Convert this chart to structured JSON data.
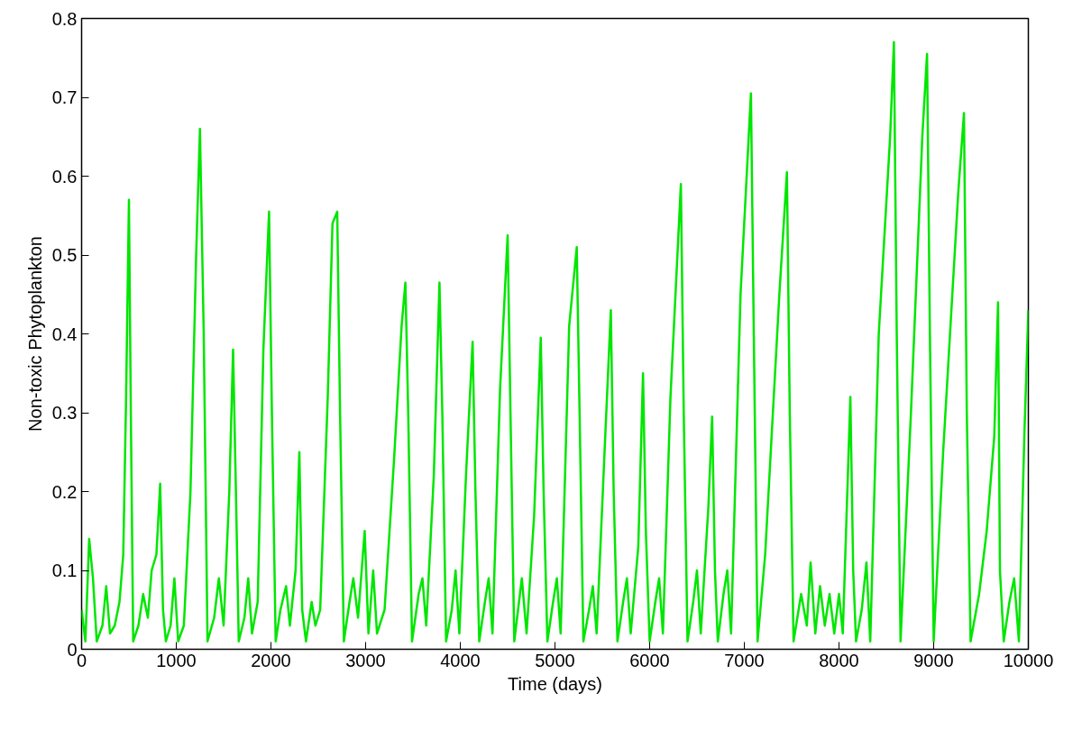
{
  "chart_data": {
    "type": "line",
    "xlabel": "Time (days)",
    "ylabel": "Non-toxic Phytoplankton",
    "xlim": [
      0,
      10000
    ],
    "ylim": [
      0,
      0.8
    ],
    "xticks": [
      0,
      1000,
      2000,
      3000,
      4000,
      5000,
      6000,
      7000,
      8000,
      9000,
      10000
    ],
    "yticks": [
      0,
      0.1,
      0.2,
      0.3,
      0.4,
      0.5,
      0.6,
      0.7,
      0.8
    ],
    "grid": false,
    "marker": "none",
    "line_style": "solid",
    "series": [
      {
        "color": "#00e600",
        "x": [
          0,
          40,
          80,
          120,
          160,
          220,
          260,
          300,
          350,
          400,
          440,
          470,
          500,
          520,
          545,
          600,
          650,
          700,
          740,
          790,
          830,
          860,
          890,
          940,
          980,
          1020,
          1080,
          1150,
          1210,
          1250,
          1290,
          1330,
          1400,
          1450,
          1500,
          1560,
          1600,
          1630,
          1660,
          1720,
          1760,
          1800,
          1860,
          1920,
          1980,
          2010,
          2050,
          2100,
          2160,
          2200,
          2260,
          2300,
          2330,
          2370,
          2430,
          2470,
          2520,
          2600,
          2650,
          2700,
          2730,
          2770,
          2830,
          2870,
          2920,
          2990,
          3030,
          3080,
          3120,
          3200,
          3300,
          3380,
          3420,
          3450,
          3490,
          3560,
          3600,
          3640,
          3720,
          3780,
          3810,
          3850,
          3910,
          3950,
          3990,
          4060,
          4130,
          4160,
          4200,
          4260,
          4300,
          4340,
          4420,
          4500,
          4530,
          4570,
          4620,
          4650,
          4700,
          4780,
          4850,
          4880,
          4920,
          4980,
          5020,
          5060,
          5150,
          5230,
          5260,
          5300,
          5360,
          5400,
          5440,
          5520,
          5590,
          5620,
          5660,
          5720,
          5760,
          5800,
          5880,
          5930,
          5960,
          6000,
          6060,
          6100,
          6140,
          6220,
          6330,
          6360,
          6400,
          6460,
          6500,
          6540,
          6620,
          6660,
          6690,
          6720,
          6780,
          6820,
          6860,
          6960,
          7070,
          7100,
          7140,
          7220,
          7370,
          7450,
          7480,
          7520,
          7600,
          7660,
          7700,
          7750,
          7800,
          7850,
          7900,
          7950,
          8000,
          8040,
          8120,
          8150,
          8180,
          8240,
          8290,
          8330,
          8420,
          8540,
          8580,
          8610,
          8650,
          8760,
          8880,
          8930,
          8960,
          9000,
          9100,
          9260,
          9320,
          9350,
          9390,
          9480,
          9560,
          9640,
          9680,
          9700,
          9740,
          9800,
          9850,
          9900,
          9960,
          10000
        ],
        "values": [
          0.05,
          0.01,
          0.14,
          0.09,
          0.01,
          0.03,
          0.08,
          0.02,
          0.03,
          0.06,
          0.12,
          0.32,
          0.57,
          0.3,
          0.01,
          0.03,
          0.07,
          0.04,
          0.1,
          0.12,
          0.21,
          0.05,
          0.01,
          0.03,
          0.09,
          0.01,
          0.03,
          0.2,
          0.5,
          0.66,
          0.4,
          0.01,
          0.04,
          0.09,
          0.03,
          0.2,
          0.38,
          0.2,
          0.01,
          0.04,
          0.09,
          0.02,
          0.06,
          0.38,
          0.555,
          0.3,
          0.01,
          0.05,
          0.08,
          0.03,
          0.1,
          0.25,
          0.05,
          0.01,
          0.06,
          0.03,
          0.05,
          0.32,
          0.54,
          0.555,
          0.3,
          0.01,
          0.06,
          0.09,
          0.04,
          0.15,
          0.02,
          0.1,
          0.02,
          0.05,
          0.24,
          0.41,
          0.465,
          0.3,
          0.01,
          0.07,
          0.09,
          0.03,
          0.22,
          0.465,
          0.3,
          0.01,
          0.05,
          0.1,
          0.02,
          0.22,
          0.39,
          0.2,
          0.01,
          0.06,
          0.09,
          0.02,
          0.33,
          0.525,
          0.3,
          0.01,
          0.06,
          0.09,
          0.02,
          0.17,
          0.395,
          0.2,
          0.01,
          0.06,
          0.09,
          0.02,
          0.41,
          0.51,
          0.3,
          0.01,
          0.05,
          0.08,
          0.02,
          0.24,
          0.43,
          0.2,
          0.01,
          0.06,
          0.09,
          0.02,
          0.13,
          0.35,
          0.15,
          0.01,
          0.06,
          0.09,
          0.02,
          0.32,
          0.59,
          0.3,
          0.01,
          0.06,
          0.1,
          0.02,
          0.18,
          0.295,
          0.1,
          0.01,
          0.07,
          0.1,
          0.02,
          0.45,
          0.705,
          0.4,
          0.01,
          0.12,
          0.45,
          0.605,
          0.3,
          0.01,
          0.07,
          0.03,
          0.11,
          0.02,
          0.08,
          0.03,
          0.07,
          0.02,
          0.07,
          0.02,
          0.32,
          0.1,
          0.01,
          0.05,
          0.11,
          0.01,
          0.4,
          0.65,
          0.77,
          0.4,
          0.01,
          0.3,
          0.65,
          0.755,
          0.4,
          0.01,
          0.25,
          0.58,
          0.68,
          0.3,
          0.01,
          0.07,
          0.15,
          0.27,
          0.44,
          0.1,
          0.01,
          0.06,
          0.09,
          0.01,
          0.28,
          0.43
        ]
      }
    ]
  }
}
